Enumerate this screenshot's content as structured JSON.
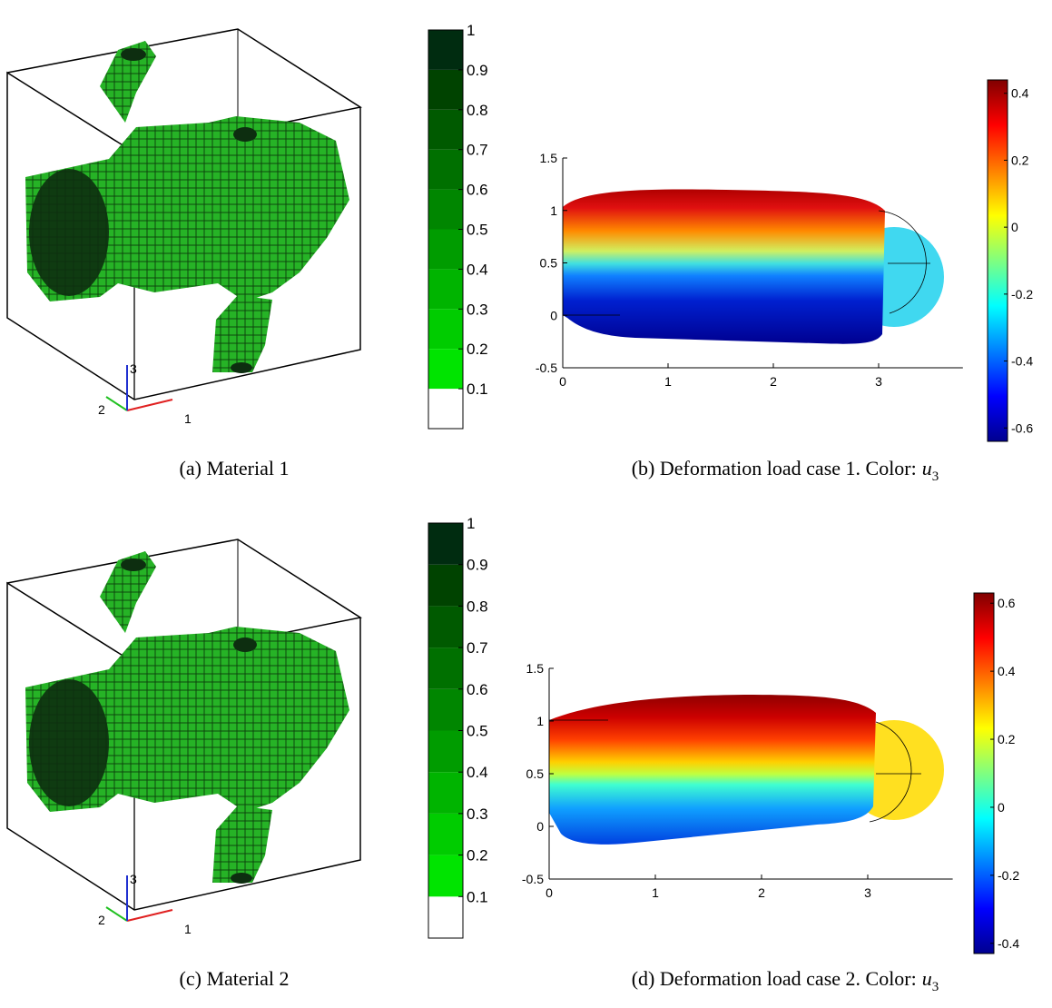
{
  "panels": [
    {
      "type": "voxel",
      "caption": "(a) Material 1",
      "axis_labels": [
        "1",
        "2",
        "3"
      ],
      "colorbar": {
        "clim": [
          0,
          1
        ],
        "ticks": [
          0.1,
          0.2,
          0.3,
          0.4,
          0.5,
          0.6,
          0.7,
          0.8,
          0.9,
          1
        ]
      }
    },
    {
      "type": "deformation",
      "caption": "(b) Deformation load case 1. Color:",
      "caption_var": "u",
      "caption_sub": "3",
      "xlim": [
        0,
        3.8
      ],
      "ylim": [
        -0.5,
        1.5
      ],
      "xticks": [
        0,
        1,
        2,
        3
      ],
      "yticks": [
        -0.5,
        0,
        0.5,
        1,
        1.5
      ],
      "colorbar": {
        "clim": [
          -0.64,
          0.44
        ],
        "ticks": [
          -0.6,
          -0.4,
          -0.2,
          0,
          0.2,
          0.4
        ]
      }
    },
    {
      "type": "voxel",
      "caption": "(c) Material 2",
      "axis_labels": [
        "1",
        "2",
        "3"
      ],
      "colorbar": {
        "clim": [
          0,
          1
        ],
        "ticks": [
          0.1,
          0.2,
          0.3,
          0.4,
          0.5,
          0.6,
          0.7,
          0.8,
          0.9,
          1
        ]
      }
    },
    {
      "type": "deformation",
      "caption": "(d) Deformation load case 2. Color:",
      "caption_var": "u",
      "caption_sub": "3",
      "xlim": [
        0,
        3.8
      ],
      "ylim": [
        -0.5,
        1.5
      ],
      "xticks": [
        0,
        1,
        2,
        3
      ],
      "yticks": [
        -0.5,
        0,
        0.5,
        1,
        1.5
      ],
      "colorbar": {
        "clim": [
          -0.43,
          0.63
        ],
        "ticks": [
          -0.4,
          -0.2,
          0,
          0.2,
          0.4,
          0.6
        ]
      }
    }
  ]
}
